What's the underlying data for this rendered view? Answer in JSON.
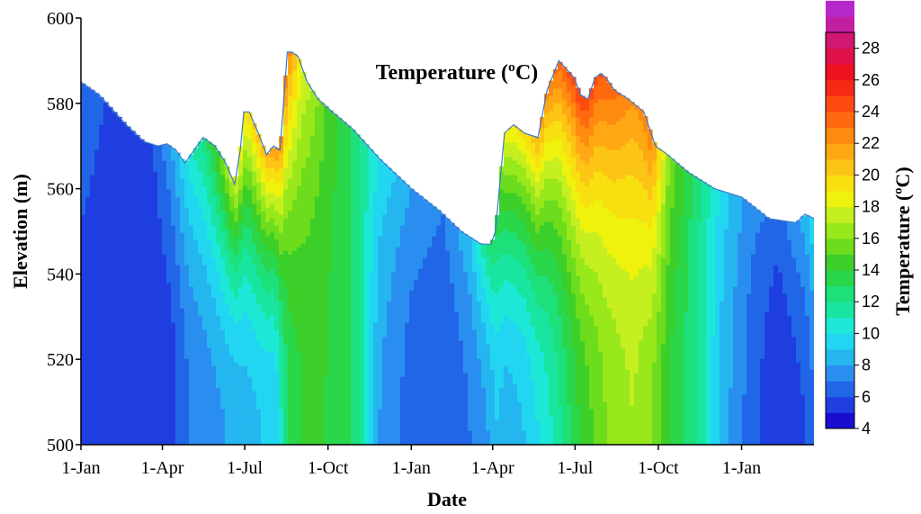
{
  "chart_data": {
    "type": "contour",
    "title": "Temperature (ºC)",
    "xlabel": "Date",
    "ylabel": "Elevation (m)",
    "colorbar_label": "Temperature (ºC)",
    "x_ticks": [
      "1-Jan",
      "1-Apr",
      "1-Jul",
      "1-Oct",
      "1-Jan",
      "1-Apr",
      "1-Jul",
      "1-Oct",
      "1-Jan"
    ],
    "x_range_days": [
      0,
      810
    ],
    "x_tick_days": [
      0,
      90,
      181,
      273,
      365,
      455,
      546,
      638,
      730
    ],
    "ylim": [
      500,
      600
    ],
    "y_ticks": [
      500,
      520,
      540,
      560,
      580,
      600
    ],
    "colorbar_range": [
      4,
      29
    ],
    "colorbar_ticks": [
      4,
      6,
      8,
      10,
      12,
      14,
      16,
      18,
      20,
      22,
      24,
      26,
      28
    ],
    "colorbar_colors": [
      "#1a0dcf",
      "#1f3ee0",
      "#2266e8",
      "#2a8ef0",
      "#25b6f0",
      "#22d6f2",
      "#1de8d8",
      "#18e6a0",
      "#1ee07a",
      "#2ad64a",
      "#3ccf2a",
      "#6cdc1c",
      "#98e81c",
      "#c6ef20",
      "#eef20c",
      "#f8e010",
      "#fcc414",
      "#ffa814",
      "#ff8a10",
      "#ff6a10",
      "#fd4a10",
      "#f52a14",
      "#ee1220",
      "#e0104a",
      "#d01872",
      "#c020a0",
      "#b428c8"
    ],
    "water_surface": {
      "days": [
        0,
        20,
        50,
        70,
        85,
        95,
        105,
        115,
        125,
        135,
        148,
        160,
        170,
        176,
        180,
        186,
        196,
        205,
        213,
        220,
        228,
        233,
        240,
        250,
        262,
        275,
        300,
        330,
        365,
        395,
        420,
        442,
        453,
        458,
        468,
        478,
        490,
        505,
        515,
        528,
        545,
        552,
        560,
        568,
        575,
        580,
        590,
        605,
        622,
        635,
        648,
        670,
        700,
        730,
        760,
        790,
        800,
        810
      ],
      "elevation": [
        585,
        582,
        575,
        571,
        570,
        570.5,
        569,
        566,
        569,
        572,
        570,
        566,
        561,
        569,
        578,
        578,
        573,
        568,
        570,
        569,
        592,
        592,
        591,
        585,
        581,
        578.5,
        574,
        567,
        560,
        555,
        550,
        547,
        547,
        550,
        573,
        575,
        573,
        572,
        583,
        590,
        586,
        582,
        581,
        586,
        587,
        586,
        583,
        581,
        578,
        570,
        568,
        564,
        560,
        558,
        553,
        552,
        554,
        553
      ]
    },
    "temperature_profile": {
      "days": [
        0,
        40,
        80,
        100,
        120,
        140,
        160,
        180,
        200,
        215,
        228,
        245,
        270,
        300,
        330,
        365,
        400,
        430,
        450,
        460,
        470,
        490,
        520,
        550,
        580,
        610,
        630,
        650,
        680,
        710,
        740,
        770,
        800,
        810
      ],
      "surface_temp": [
        7,
        5.5,
        6,
        8,
        10.5,
        13,
        16.5,
        19.5,
        21,
        22,
        23,
        18,
        15,
        13,
        10,
        8,
        7,
        9,
        12.5,
        14,
        19,
        19.5,
        23,
        25,
        24,
        22,
        23,
        16,
        12.5,
        9.5,
        7.5,
        6.5,
        8.5,
        10
      ],
      "bottom_temp": [
        5.5,
        5,
        5,
        5.5,
        7,
        7.5,
        8,
        8.5,
        9,
        9,
        13,
        14,
        14,
        13,
        8,
        6.5,
        6,
        7,
        8,
        9,
        8.5,
        9,
        11,
        14,
        16,
        17,
        16,
        14,
        12,
        8.5,
        6.5,
        5,
        6,
        7
      ]
    }
  }
}
